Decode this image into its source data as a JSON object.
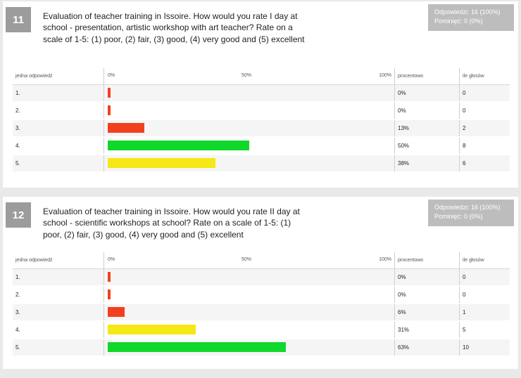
{
  "colors": {
    "low": "#f2401f",
    "mid": "#f5e814",
    "high": "#0fd82a"
  },
  "questions": [
    {
      "number": "11",
      "text": "Evaluation of teacher training in Issoire. How would you rate I day at school - presentation, artistic workshop with art teacher? Rate on a scale of 1-5: (1) poor, (2) fair, (3) good, (4) very good and (5) excellent",
      "stats_answered": "Odpowiedzi: 16 (100%)",
      "stats_skipped": "Pominięć: 0 (0%)",
      "headers": {
        "answer": "jedna odpowiedź",
        "pct": "procentowo",
        "count": "ile głosów"
      },
      "scale": {
        "s0": "0%",
        "s50": "50%",
        "s100": "100%"
      },
      "rows": [
        {
          "label": "1.",
          "pct": "0%",
          "count": "0",
          "value": 0,
          "color": "#f2401f"
        },
        {
          "label": "2.",
          "pct": "0%",
          "count": "0",
          "value": 0,
          "color": "#f2401f"
        },
        {
          "label": "3.",
          "pct": "13%",
          "count": "2",
          "value": 13,
          "color": "#f2401f"
        },
        {
          "label": "4.",
          "pct": "50%",
          "count": "8",
          "value": 50,
          "color": "#0fd82a"
        },
        {
          "label": "5.",
          "pct": "38%",
          "count": "6",
          "value": 38,
          "color": "#f5e814"
        }
      ]
    },
    {
      "number": "12",
      "text": "Evaluation of teacher training in Issoire. How would you rate II day at school - scientific workshops at school? Rate on a scale of 1-5: (1) poor, (2) fair, (3) good, (4) very good and (5) excellent",
      "stats_answered": "Odpowiedzi: 16 (100%)",
      "stats_skipped": "Pominięć: 0 (0%)",
      "headers": {
        "answer": "jedna odpowiedź",
        "pct": "procentowo",
        "count": "ile głosów"
      },
      "scale": {
        "s0": "0%",
        "s50": "50%",
        "s100": "100%"
      },
      "rows": [
        {
          "label": "1.",
          "pct": "0%",
          "count": "0",
          "value": 0,
          "color": "#f2401f"
        },
        {
          "label": "2.",
          "pct": "0%",
          "count": "0",
          "value": 0,
          "color": "#f2401f"
        },
        {
          "label": "3.",
          "pct": "6%",
          "count": "1",
          "value": 6,
          "color": "#f2401f"
        },
        {
          "label": "4.",
          "pct": "31%",
          "count": "5",
          "value": 31,
          "color": "#f5e814"
        },
        {
          "label": "5.",
          "pct": "63%",
          "count": "10",
          "value": 63,
          "color": "#0fd82a"
        }
      ]
    }
  ],
  "chart_data": [
    {
      "type": "bar",
      "title": "Evaluation of teacher training in Issoire. How would you rate I day at school - presentation, artistic workshop with art teacher? Rate on a scale of 1-5: (1) poor, (2) fair, (3) good, (4) very good and (5) excellent",
      "categories": [
        "1.",
        "2.",
        "3.",
        "4.",
        "5."
      ],
      "values": [
        0,
        0,
        13,
        50,
        38
      ],
      "counts": [
        0,
        0,
        2,
        8,
        6
      ],
      "xlim": [
        0,
        100
      ],
      "orientation": "horizontal"
    },
    {
      "type": "bar",
      "title": "Evaluation of teacher training in Issoire. How would you rate II day at school - scientific workshops at school? Rate on a scale of 1-5: (1) poor, (2) fair, (3) good, (4) very good and (5) excellent",
      "categories": [
        "1.",
        "2.",
        "3.",
        "4.",
        "5."
      ],
      "values": [
        0,
        0,
        6,
        31,
        63
      ],
      "counts": [
        0,
        0,
        1,
        5,
        10
      ],
      "xlim": [
        0,
        100
      ],
      "orientation": "horizontal"
    }
  ]
}
